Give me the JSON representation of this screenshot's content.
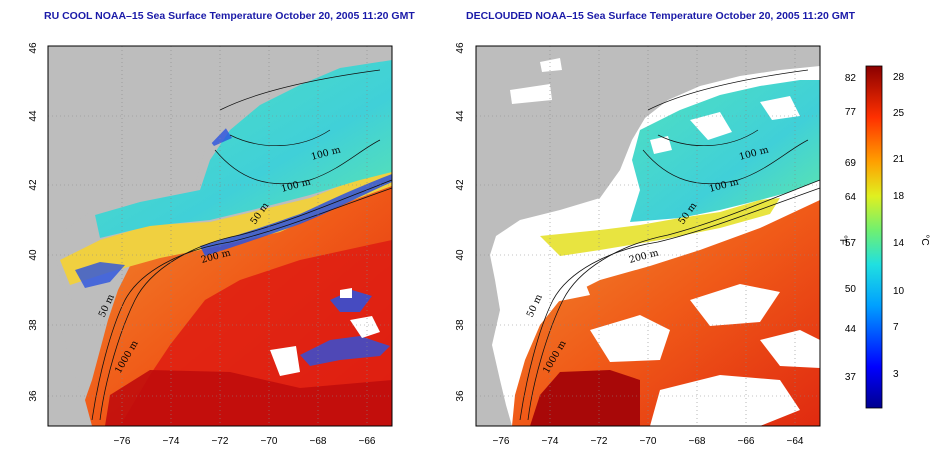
{
  "titles": {
    "left": "RU COOL NOAA–15 Sea Surface Temperature October 20, 2005 11:20 GMT",
    "right": "DECLOUDED NOAA–15 Sea Surface Temperature October 20, 2005 11:20 GMT"
  },
  "axes": {
    "x_ticks": [
      "−76",
      "−74",
      "−72",
      "−70",
      "−68",
      "−66",
      "−64"
    ],
    "y_ticks": [
      "36",
      "38",
      "40",
      "42",
      "44",
      "46"
    ]
  },
  "contour_labels": {
    "left": [
      "100 m",
      "100 m",
      "50 m",
      "200 m",
      "50 m",
      "1000 m"
    ],
    "right": [
      "100 m",
      "100 m",
      "50 m",
      "200 m",
      "50 m",
      "1000 m"
    ]
  },
  "colorbar": {
    "f_labels": [
      "82",
      "77",
      "69",
      "64",
      "57",
      "50",
      "44",
      "37"
    ],
    "c_labels": [
      "28",
      "25",
      "21",
      "18",
      "14",
      "10",
      "7",
      "3"
    ],
    "f_unit": "°F",
    "c_unit": "°C"
  },
  "colors": {
    "land": "#bdbdbd",
    "cloud": "#ffffff",
    "cold": "#2a52e0",
    "shelf": "#45d8c8",
    "mid": "#f0e040",
    "warm": "#f07020",
    "hot": "#d41010",
    "title": "#1a1aa8"
  }
}
